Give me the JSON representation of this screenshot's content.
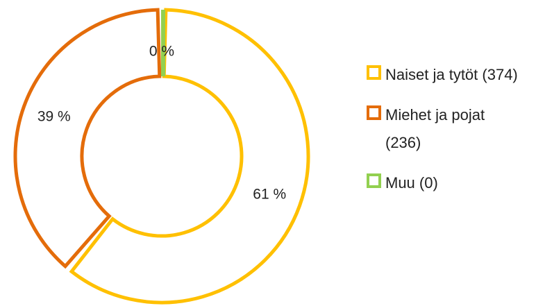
{
  "chart_data": {
    "type": "donut",
    "categories": [
      "Naiset ja tytöt (374)",
      "Miehet ja pojat (236)",
      "Muu (0)"
    ],
    "values": [
      61,
      39,
      0
    ],
    "value_labels": [
      "61 %",
      "39 %",
      "0 %"
    ],
    "colors": [
      "#ffc000",
      "#e46c0a",
      "#92d050"
    ],
    "legend": "right"
  }
}
